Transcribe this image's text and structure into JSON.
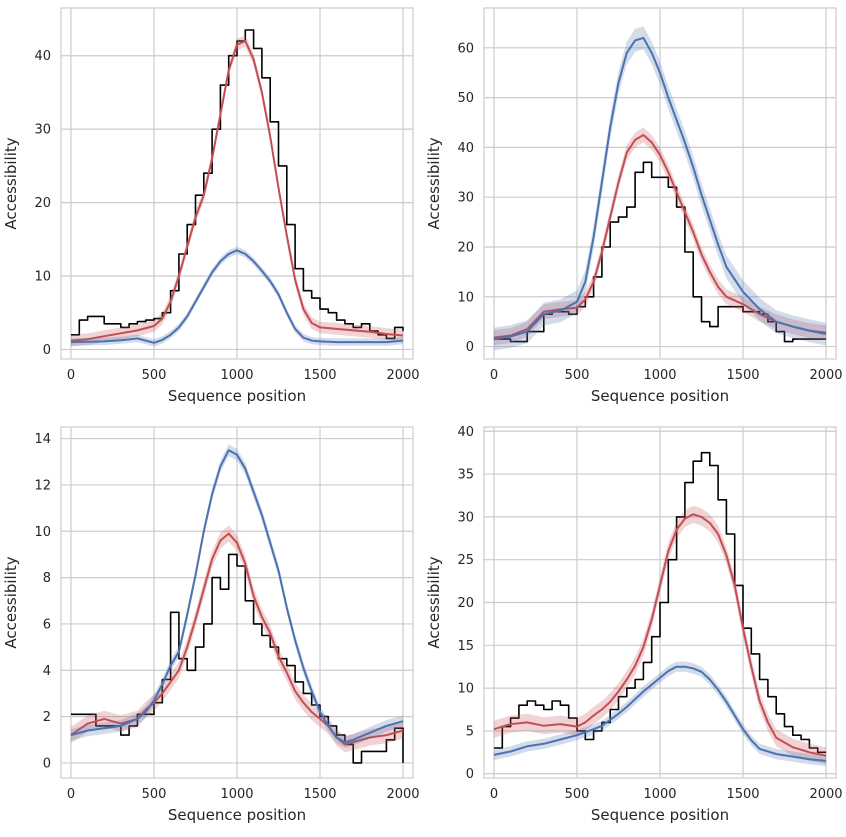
{
  "chart_data": [
    {
      "type": "line",
      "xlabel": "Sequence position",
      "ylabel": "Accessibility",
      "xlim": [
        -60,
        2060
      ],
      "ylim": [
        -1.3,
        46.5
      ],
      "xticks": [
        0,
        500,
        1000,
        1500,
        2000
      ],
      "yticks": [
        0,
        10,
        20,
        30,
        40
      ],
      "grid": true,
      "series": [
        {
          "color": "#000000",
          "band": false,
          "step": true,
          "x": [
            0,
            50,
            100,
            200,
            300,
            350,
            400,
            450,
            500,
            550,
            600,
            650,
            700,
            750,
            800,
            850,
            900,
            950,
            1000,
            1050,
            1100,
            1150,
            1200,
            1250,
            1300,
            1350,
            1400,
            1450,
            1500,
            1550,
            1600,
            1650,
            1700,
            1750,
            1800,
            1850,
            1900,
            1950,
            2000
          ],
          "y": [
            2,
            4,
            4.5,
            3.5,
            3,
            3.5,
            3.8,
            4,
            4.2,
            5,
            8,
            13,
            17,
            21,
            24,
            30,
            36,
            40,
            42,
            43.5,
            41,
            37,
            31,
            25,
            17,
            11,
            8,
            7,
            5.5,
            5,
            4,
            3.5,
            3,
            3.5,
            2.5,
            2,
            1.5,
            3,
            2.5
          ]
        },
        {
          "color": "#c44e52",
          "band": true,
          "band_width": 0.8,
          "x": [
            0,
            100,
            200,
            300,
            400,
            500,
            550,
            600,
            650,
            700,
            750,
            800,
            850,
            900,
            950,
            1000,
            1050,
            1100,
            1150,
            1200,
            1250,
            1300,
            1350,
            1400,
            1450,
            1500,
            1600,
            1700,
            1800,
            1900,
            2000
          ],
          "y": [
            1.2,
            1.4,
            1.8,
            2.2,
            2.6,
            3.2,
            4.2,
            6.5,
            10,
            14,
            18,
            21,
            26,
            32,
            38,
            41.5,
            42,
            39.5,
            35,
            29,
            22,
            15.5,
            9.5,
            5.5,
            3.6,
            3,
            2.8,
            2.6,
            2.4,
            2.1,
            1.9
          ]
        },
        {
          "color": "#4c72b0",
          "band": true,
          "band_width": 0.5,
          "x": [
            0,
            100,
            200,
            300,
            400,
            450,
            500,
            550,
            600,
            650,
            700,
            750,
            800,
            850,
            900,
            950,
            1000,
            1050,
            1100,
            1150,
            1200,
            1250,
            1300,
            1350,
            1400,
            1450,
            1500,
            1600,
            1700,
            1800,
            1900,
            2000
          ],
          "y": [
            1,
            1.05,
            1.1,
            1.25,
            1.5,
            1.2,
            0.9,
            1.3,
            2,
            3,
            4.5,
            6.5,
            8.5,
            10.5,
            12,
            13,
            13.5,
            13,
            12,
            10.7,
            9.3,
            7.5,
            5,
            2.8,
            1.6,
            1.2,
            1.1,
            1,
            1,
            1,
            1,
            1.2
          ]
        }
      ]
    },
    {
      "type": "line",
      "xlabel": "Sequence position",
      "ylabel": "Accessibility",
      "xlim": [
        -60,
        2060
      ],
      "ylim": [
        -2.5,
        68
      ],
      "xticks": [
        0,
        500,
        1000,
        1500,
        2000
      ],
      "yticks": [
        0,
        10,
        20,
        30,
        40,
        50,
        60
      ],
      "grid": true,
      "series": [
        {
          "color": "#000000",
          "band": false,
          "step": true,
          "x": [
            0,
            100,
            200,
            300,
            350,
            400,
            450,
            500,
            550,
            600,
            650,
            700,
            750,
            800,
            850,
            900,
            950,
            1000,
            1050,
            1100,
            1150,
            1200,
            1250,
            1300,
            1350,
            1400,
            1450,
            1500,
            1550,
            1600,
            1650,
            1700,
            1750,
            1800,
            1850,
            1900,
            2000
          ],
          "y": [
            1.5,
            1,
            3,
            6.5,
            7,
            7,
            6.5,
            8,
            10,
            14,
            20,
            25,
            26,
            28,
            35,
            37,
            34,
            34,
            32,
            28,
            19,
            10,
            5,
            4,
            8,
            8,
            8,
            7,
            7,
            6.5,
            5,
            3,
            1,
            1.5,
            1.5,
            1.5,
            1.5
          ]
        },
        {
          "color": "#c44e52",
          "band": true,
          "band_width": 1.5,
          "x": [
            0,
            100,
            200,
            300,
            400,
            500,
            550,
            600,
            650,
            700,
            750,
            800,
            850,
            900,
            950,
            1000,
            1050,
            1100,
            1150,
            1200,
            1250,
            1300,
            1350,
            1400,
            1500,
            1600,
            1700,
            1800,
            1900,
            2000
          ],
          "y": [
            1.8,
            2.2,
            3.5,
            7,
            7.5,
            7.8,
            9.5,
            13,
            19,
            26,
            33,
            39,
            41.5,
            42.5,
            41,
            38.5,
            35,
            31,
            27,
            23,
            18.5,
            15,
            12,
            10,
            8.5,
            6.5,
            5,
            4,
            3.2,
            2.8
          ]
        },
        {
          "color": "#4c72b0",
          "band": true,
          "band_width": 2.3,
          "x": [
            0,
            100,
            200,
            300,
            400,
            500,
            550,
            600,
            650,
            700,
            750,
            800,
            850,
            900,
            950,
            1000,
            1050,
            1100,
            1150,
            1200,
            1250,
            1300,
            1350,
            1400,
            1500,
            1600,
            1700,
            1800,
            1900,
            2000
          ],
          "y": [
            1.5,
            2,
            3,
            6.5,
            7.2,
            9,
            13,
            22,
            33,
            44,
            53,
            59,
            61.5,
            62,
            59,
            55,
            50,
            45.5,
            41,
            36,
            30.5,
            25.5,
            20.5,
            16,
            11,
            7.5,
            5,
            4,
            3.2,
            2.5
          ]
        }
      ]
    },
    {
      "type": "line",
      "xlabel": "Sequence position",
      "ylabel": "Accessibility",
      "xlim": [
        -60,
        2060
      ],
      "ylim": [
        -0.65,
        14.5
      ],
      "xticks": [
        0,
        500,
        1000,
        1500,
        2000
      ],
      "yticks": [
        0,
        2,
        4,
        6,
        8,
        10,
        12,
        14
      ],
      "grid": true,
      "series": [
        {
          "color": "#000000",
          "band": false,
          "step": true,
          "x": [
            0,
            50,
            100,
            150,
            200,
            250,
            300,
            350,
            400,
            450,
            500,
            550,
            600,
            650,
            700,
            750,
            800,
            850,
            900,
            950,
            1000,
            1050,
            1100,
            1150,
            1200,
            1250,
            1300,
            1350,
            1400,
            1450,
            1500,
            1550,
            1600,
            1650,
            1700,
            1750,
            1800,
            1850,
            1900,
            1950,
            2000
          ],
          "y": [
            2.1,
            2.1,
            2.1,
            1.6,
            1.6,
            1.6,
            1.2,
            1.6,
            2.1,
            2.1,
            2.6,
            3.6,
            6.5,
            4.5,
            4,
            5,
            6,
            8,
            7.5,
            9,
            8.5,
            7,
            6,
            5.5,
            5,
            4.5,
            4.2,
            3.5,
            3,
            2.5,
            2,
            1.6,
            1.2,
            0.8,
            0,
            0.5,
            0.5,
            0.5,
            1,
            1.5,
            0
          ]
        },
        {
          "color": "#c44e52",
          "band": true,
          "band_width": 0.35,
          "x": [
            0,
            100,
            200,
            300,
            400,
            450,
            500,
            550,
            600,
            650,
            700,
            750,
            800,
            850,
            900,
            950,
            1000,
            1050,
            1100,
            1150,
            1200,
            1250,
            1300,
            1350,
            1400,
            1450,
            1500,
            1550,
            1600,
            1650,
            1700,
            1800,
            1900,
            2000
          ],
          "y": [
            1.2,
            1.7,
            1.9,
            1.7,
            1.9,
            2.3,
            2.6,
            3,
            3.5,
            4,
            5,
            6.2,
            7.5,
            8.8,
            9.6,
            9.9,
            9.5,
            8.6,
            7.2,
            6.3,
            5.6,
            4.6,
            3.9,
            3.1,
            2.6,
            2.2,
            1.9,
            1.6,
            1.1,
            0.8,
            0.9,
            1.1,
            1.2,
            1.4
          ]
        },
        {
          "color": "#4c72b0",
          "band": true,
          "band_width": 0.25,
          "x": [
            0,
            100,
            200,
            300,
            400,
            450,
            500,
            550,
            600,
            650,
            700,
            750,
            800,
            850,
            900,
            950,
            1000,
            1050,
            1100,
            1150,
            1200,
            1250,
            1300,
            1350,
            1400,
            1450,
            1500,
            1550,
            1600,
            1650,
            1700,
            1800,
            1900,
            2000
          ],
          "y": [
            1.2,
            1.4,
            1.5,
            1.6,
            1.9,
            2.2,
            2.7,
            3.4,
            4.2,
            4.8,
            6.4,
            8.1,
            10,
            11.6,
            12.8,
            13.5,
            13.3,
            12.7,
            11.7,
            10.7,
            9.5,
            8.3,
            6.7,
            5.3,
            4.1,
            3.1,
            2.2,
            1.6,
            1.1,
            0.9,
            1,
            1.3,
            1.6,
            1.8
          ]
        }
      ]
    },
    {
      "type": "line",
      "xlabel": "Sequence position",
      "ylabel": "Accessibility",
      "xlim": [
        -60,
        2060
      ],
      "ylim": [
        -0.5,
        40.5
      ],
      "xticks": [
        0,
        500,
        1000,
        1500,
        2000
      ],
      "yticks": [
        0,
        5,
        10,
        15,
        20,
        25,
        30,
        35,
        40
      ],
      "grid": true,
      "series": [
        {
          "color": "#000000",
          "band": false,
          "step": true,
          "x": [
            0,
            50,
            100,
            150,
            200,
            250,
            300,
            350,
            400,
            450,
            500,
            550,
            600,
            650,
            700,
            750,
            800,
            850,
            900,
            950,
            1000,
            1050,
            1100,
            1150,
            1200,
            1250,
            1300,
            1350,
            1400,
            1450,
            1500,
            1550,
            1600,
            1650,
            1700,
            1750,
            1800,
            1850,
            1900,
            1950,
            2000
          ],
          "y": [
            3,
            5.5,
            6.5,
            8,
            8.5,
            8,
            7.5,
            8.5,
            8,
            6.5,
            5,
            4,
            5,
            6,
            7.5,
            9,
            10,
            11,
            13,
            16,
            20,
            25,
            30,
            34,
            36.5,
            37.5,
            36,
            32,
            28,
            22,
            17,
            14,
            11,
            9,
            7,
            5.5,
            4.5,
            4,
            3,
            2.5,
            2.5
          ]
        },
        {
          "color": "#c44e52",
          "band": true,
          "band_width": 1.0,
          "x": [
            0,
            100,
            200,
            300,
            400,
            500,
            550,
            600,
            650,
            700,
            750,
            800,
            850,
            900,
            950,
            1000,
            1050,
            1100,
            1150,
            1200,
            1250,
            1300,
            1350,
            1400,
            1450,
            1500,
            1550,
            1600,
            1650,
            1700,
            1800,
            1900,
            2000
          ],
          "y": [
            5.2,
            5.8,
            6,
            5.6,
            5.8,
            5.5,
            6,
            6.8,
            7.5,
            8.4,
            9.6,
            11,
            12.6,
            14.8,
            18,
            22,
            26,
            28.5,
            29.8,
            30.3,
            30,
            29.3,
            28,
            25.5,
            22,
            17,
            12.5,
            8.5,
            6,
            4.2,
            3.1,
            2.5,
            2.1
          ]
        },
        {
          "color": "#4c72b0",
          "band": true,
          "band_width": 0.6,
          "x": [
            0,
            100,
            200,
            300,
            400,
            500,
            600,
            650,
            700,
            750,
            800,
            850,
            900,
            950,
            1000,
            1050,
            1100,
            1150,
            1200,
            1250,
            1300,
            1350,
            1400,
            1450,
            1500,
            1550,
            1600,
            1700,
            1800,
            1900,
            2000
          ],
          "y": [
            2.2,
            2.6,
            3.2,
            3.5,
            4,
            4.5,
            5.2,
            5.6,
            6.3,
            7,
            7.8,
            8.7,
            9.6,
            10.4,
            11.2,
            12,
            12.5,
            12.5,
            12.3,
            11.9,
            11,
            9.8,
            8.4,
            6.8,
            5.2,
            3.9,
            2.9,
            2.3,
            2,
            1.7,
            1.5
          ]
        }
      ]
    }
  ]
}
